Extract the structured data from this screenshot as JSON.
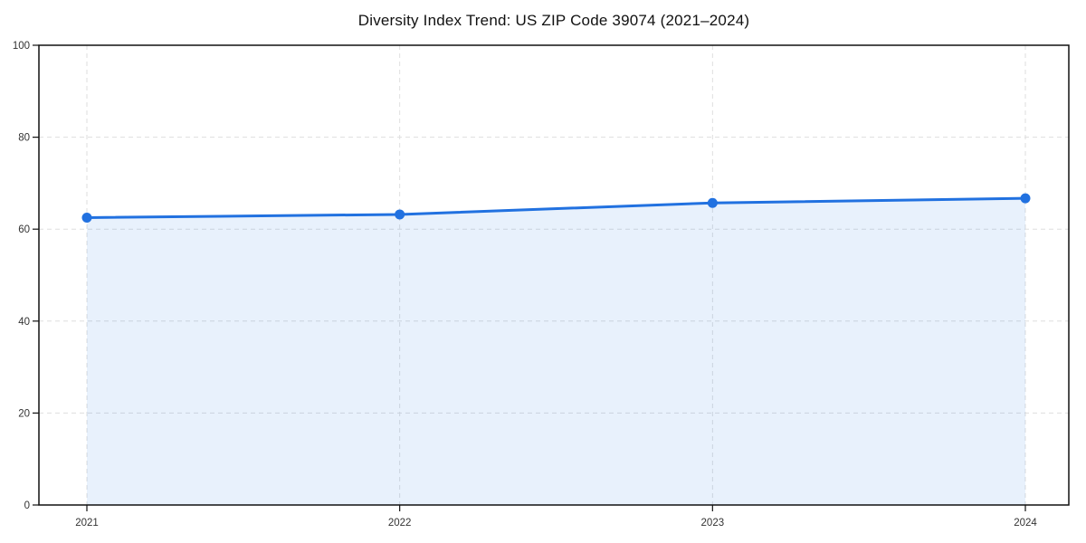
{
  "figure": {
    "title": "Diversity Index Trend: US ZIP Code 39074 (2021–2024)"
  },
  "chart_data": {
    "type": "area",
    "title": "Diversity Index Trend: US ZIP Code 39074 (2021–2024)",
    "categories": [
      "2021",
      "2022",
      "2023",
      "2024"
    ],
    "series": [
      {
        "name": "Diversity Index",
        "values": [
          62.5,
          63.2,
          65.7,
          66.7
        ]
      }
    ],
    "xlabel": "",
    "ylabel": "",
    "ylim": [
      0,
      100
    ],
    "yticks": [
      0,
      20,
      40,
      60,
      80,
      100
    ],
    "grid": true,
    "grid_style": "dashed",
    "legend_position": "none",
    "marker": "circle",
    "colors": {
      "line": "#2171e0",
      "marker": "#2171e0",
      "fill": "rgba(33,113,224,0.10)",
      "grid": "#dedede",
      "spine": "#111111",
      "tick_text": "#333333"
    }
  }
}
